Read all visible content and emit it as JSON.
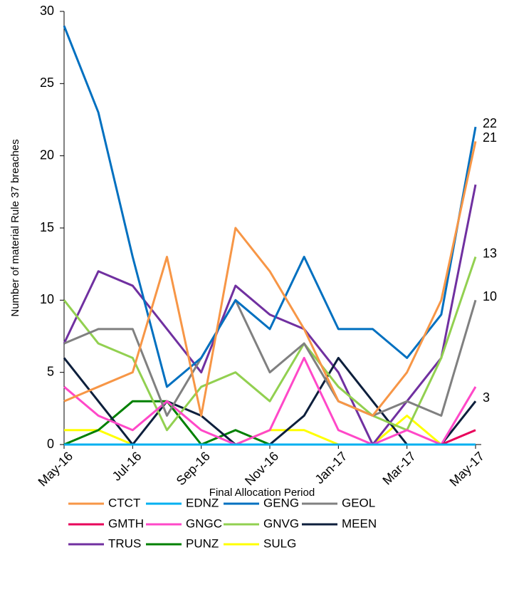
{
  "chart_data": {
    "type": "line",
    "x_label": "Final Allocation Period",
    "y_label": "Number of material  Rule 37 breaches",
    "categories": [
      "May-16",
      null,
      "Jul-16",
      null,
      "Sep-16",
      null,
      "Nov-16",
      null,
      "Jan-17",
      null,
      "Mar-17",
      null,
      "May-17"
    ],
    "ylim": [
      0,
      30
    ],
    "yticks": [
      0,
      5,
      10,
      15,
      20,
      25,
      30
    ],
    "series": [
      {
        "name": "CTCT",
        "color": "#f79646",
        "values": [
          3,
          4,
          5,
          13,
          2,
          15,
          12,
          8,
          3,
          2,
          5,
          10,
          21
        ],
        "end_label": true
      },
      {
        "name": "EDNZ",
        "color": "#00b0f0",
        "values": [
          0,
          0,
          0,
          0,
          0,
          0,
          0,
          0,
          0,
          0,
          0,
          0,
          0
        ]
      },
      {
        "name": "GENG",
        "color": "#0070c0",
        "values": [
          29,
          23,
          13,
          4,
          6,
          10,
          8,
          13,
          8,
          8,
          6,
          9,
          22
        ],
        "end_label": true
      },
      {
        "name": "GEOL",
        "color": "#808080",
        "values": [
          7,
          8,
          8,
          2,
          6,
          10,
          5,
          7,
          3,
          2,
          3,
          2,
          10
        ],
        "end_label": true
      },
      {
        "name": "GMTH",
        "color": "#e8005a",
        "values": [
          0,
          0,
          0,
          0,
          0,
          0,
          0,
          0,
          0,
          0,
          0,
          0,
          1
        ]
      },
      {
        "name": "GNGC",
        "color": "#ff48c8",
        "values": [
          4,
          2,
          1,
          3,
          1,
          0,
          1,
          6,
          1,
          0,
          1,
          0,
          4
        ]
      },
      {
        "name": "GNVG",
        "color": "#92d050",
        "values": [
          10,
          7,
          6,
          1,
          4,
          5,
          3,
          7,
          4,
          2,
          1,
          6,
          13
        ],
        "end_label": true
      },
      {
        "name": "MEEN",
        "color": "#0d1f3c",
        "values": [
          6,
          3,
          0,
          3,
          2,
          0,
          0,
          2,
          6,
          3,
          0,
          0,
          3
        ],
        "end_label": true
      },
      {
        "name": "TRUS",
        "color": "#7030a0",
        "values": [
          7,
          12,
          11,
          8,
          5,
          11,
          9,
          8,
          5,
          0,
          3,
          6,
          18
        ]
      },
      {
        "name": "PUNZ",
        "color": "#008000",
        "values": [
          0,
          1,
          3,
          3,
          0,
          1,
          0,
          0,
          0,
          0,
          0,
          0,
          0
        ]
      },
      {
        "name": "SULG",
        "color": "#ffff00",
        "values": [
          1,
          1,
          0,
          0,
          0,
          0,
          1,
          1,
          0,
          0,
          2,
          0,
          0
        ]
      }
    ]
  }
}
